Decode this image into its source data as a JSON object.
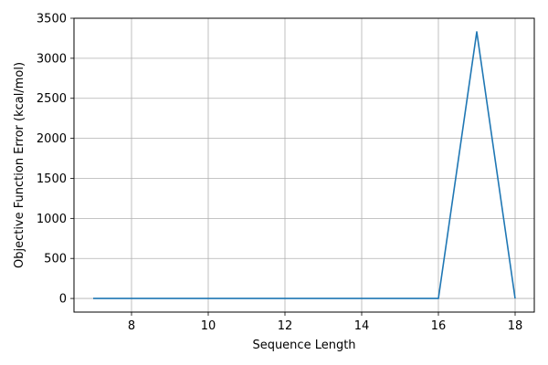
{
  "chart_data": {
    "type": "line",
    "title": "",
    "xlabel": "Sequence Length",
    "ylabel": "Objective Function Error (kcal/mol)",
    "xlim": [
      6.5,
      18.5
    ],
    "ylim": [
      -170,
      3500
    ],
    "xticks": [
      8,
      10,
      12,
      14,
      16,
      18
    ],
    "yticks": [
      0,
      500,
      1000,
      1500,
      2000,
      2500,
      3000,
      3500
    ],
    "grid": true,
    "series": [
      {
        "color": "#1f77b4",
        "x": [
          7,
          8,
          9,
          10,
          11,
          12,
          13,
          14,
          15,
          16,
          17,
          18
        ],
        "y": [
          0,
          0,
          0,
          0,
          0,
          0,
          0,
          0,
          0,
          0,
          3330,
          0
        ]
      }
    ]
  }
}
